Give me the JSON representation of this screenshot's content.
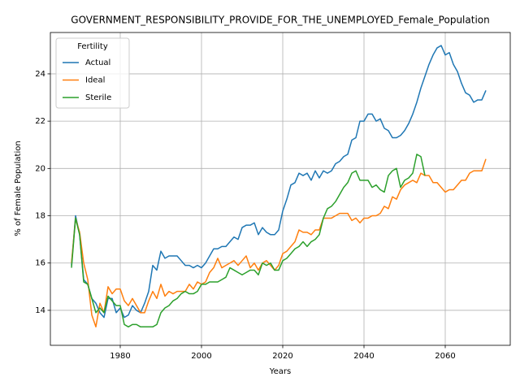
{
  "chart_data": {
    "type": "line",
    "title": "GOVERNMENT_RESPONSIBILITY_PROVIDE_FOR_THE_UNEMPLOYED_Female_Population",
    "xlabel": "Years",
    "ylabel": "% of Female Population",
    "x": [
      1968,
      1969,
      1970,
      1971,
      1972,
      1973,
      1974,
      1975,
      1976,
      1977,
      1978,
      1979,
      1980,
      1981,
      1982,
      1983,
      1984,
      1985,
      1986,
      1987,
      1988,
      1989,
      1990,
      1991,
      1992,
      1993,
      1994,
      1995,
      1996,
      1997,
      1998,
      1999,
      2000,
      2001,
      2002,
      2003,
      2004,
      2005,
      2006,
      2007,
      2008,
      2009,
      2010,
      2011,
      2012,
      2013,
      2014,
      2015,
      2016,
      2017,
      2018,
      2019,
      2020,
      2021,
      2022,
      2023,
      2024,
      2025,
      2026,
      2027,
      2028,
      2029,
      2030,
      2031,
      2032,
      2033,
      2034,
      2035,
      2036,
      2037,
      2038,
      2039,
      2040,
      2041,
      2042,
      2043,
      2044,
      2045,
      2046,
      2047,
      2048,
      2049,
      2050,
      2051,
      2052,
      2053,
      2054,
      2055,
      2056,
      2057,
      2058,
      2059,
      2060,
      2061,
      2062,
      2063,
      2064,
      2065,
      2066,
      2067,
      2068,
      2069,
      2070
    ],
    "series": [
      {
        "name": "Actual",
        "color": "#1f77b4",
        "values": [
          15.9,
          18.0,
          17.2,
          15.3,
          15.1,
          14.5,
          14.3,
          13.9,
          13.7,
          14.5,
          14.5,
          13.9,
          14.1,
          13.7,
          13.8,
          14.2,
          14.0,
          13.9,
          14.3,
          14.8,
          15.9,
          15.7,
          16.5,
          16.2,
          16.3,
          16.3,
          16.3,
          16.1,
          15.9,
          15.9,
          15.8,
          15.9,
          15.8,
          16.0,
          16.3,
          16.6,
          16.6,
          16.7,
          16.7,
          16.9,
          17.1,
          17.0,
          17.5,
          17.6,
          17.6,
          17.7,
          17.2,
          17.5,
          17.3,
          17.2,
          17.2,
          17.4,
          18.2,
          18.7,
          19.3,
          19.4,
          19.8,
          19.7,
          19.8,
          19.5,
          19.9,
          19.6,
          19.9,
          19.8,
          19.9,
          20.2,
          20.3,
          20.5,
          20.6,
          21.2,
          21.3,
          22.0,
          22.0,
          22.3,
          22.3,
          22.0,
          22.1,
          21.7,
          21.6,
          21.3,
          21.3,
          21.4,
          21.6,
          21.9,
          22.3,
          22.8,
          23.4,
          23.9,
          24.4,
          24.8,
          25.1,
          25.2,
          24.8,
          24.9,
          24.4,
          24.1,
          23.6,
          23.2,
          23.1,
          22.8,
          22.9,
          22.9,
          23.3
        ]
      },
      {
        "name": "Ideal",
        "color": "#ff7f0e",
        "values": [
          16.0,
          17.9,
          17.3,
          16.0,
          15.3,
          13.8,
          13.3,
          14.3,
          13.9,
          15.0,
          14.7,
          14.9,
          14.9,
          14.4,
          14.2,
          14.5,
          14.2,
          13.9,
          13.9,
          14.4,
          14.8,
          14.5,
          15.1,
          14.6,
          14.8,
          14.7,
          14.8,
          14.8,
          14.8,
          15.1,
          14.9,
          15.2,
          15.1,
          15.2,
          15.6,
          15.8,
          16.2,
          15.8,
          15.9,
          16.0,
          16.1,
          15.9,
          16.1,
          16.3,
          15.8,
          16.0,
          15.7,
          16.0,
          16.1,
          15.9,
          15.7,
          15.9,
          16.4,
          16.5,
          16.7,
          16.9,
          17.4,
          17.3,
          17.3,
          17.2,
          17.4,
          17.4,
          17.9,
          17.9,
          17.9,
          18.0,
          18.1,
          18.1,
          18.1,
          17.8,
          17.9,
          17.7,
          17.9,
          17.9,
          18.0,
          18.0,
          18.1,
          18.4,
          18.3,
          18.8,
          18.7,
          19.1,
          19.3,
          19.4,
          19.5,
          19.4,
          19.8,
          19.7,
          19.7,
          19.4,
          19.4,
          19.2,
          19.0,
          19.1,
          19.1,
          19.3,
          19.5,
          19.5,
          19.8,
          19.9,
          19.9,
          19.9,
          20.4
        ]
      },
      {
        "name": "Sterile",
        "color": "#2ca02c",
        "values": [
          15.8,
          17.9,
          17.2,
          15.2,
          15.1,
          14.5,
          13.9,
          14.1,
          13.9,
          14.6,
          14.4,
          14.2,
          14.2,
          13.4,
          13.3,
          13.4,
          13.4,
          13.3,
          13.3,
          13.3,
          13.3,
          13.4,
          13.9,
          14.1,
          14.2,
          14.4,
          14.5,
          14.7,
          14.8,
          14.7,
          14.7,
          14.8,
          15.1,
          15.1,
          15.2,
          15.2,
          15.2,
          15.3,
          15.4,
          15.8,
          15.7,
          15.6,
          15.5,
          15.6,
          15.7,
          15.7,
          15.5,
          16.0,
          15.9,
          16.0,
          15.7,
          15.7,
          16.1,
          16.2,
          16.4,
          16.6,
          16.7,
          16.9,
          16.7,
          16.9,
          17.0,
          17.2,
          17.9,
          18.3,
          18.4,
          18.6,
          18.9,
          19.2,
          19.4,
          19.8,
          19.9,
          19.5,
          19.5,
          19.5,
          19.2,
          19.3,
          19.1,
          19.0,
          19.7,
          19.9,
          20.0,
          19.2,
          19.5,
          19.6,
          19.8,
          20.6,
          20.5,
          19.7,
          null,
          null,
          null,
          null,
          null,
          null,
          null,
          null,
          null,
          null,
          null,
          null,
          null,
          null,
          null
        ]
      }
    ],
    "xlim": [
      1962.8,
      2076
    ],
    "ylim": [
      12.52,
      25.75
    ],
    "xticks": [
      1980,
      2000,
      2020,
      2040,
      2060
    ],
    "yticks": [
      14,
      16,
      18,
      20,
      22,
      24
    ],
    "grid": true,
    "legend_title": "Fertility",
    "legend_loc": "upper left"
  }
}
